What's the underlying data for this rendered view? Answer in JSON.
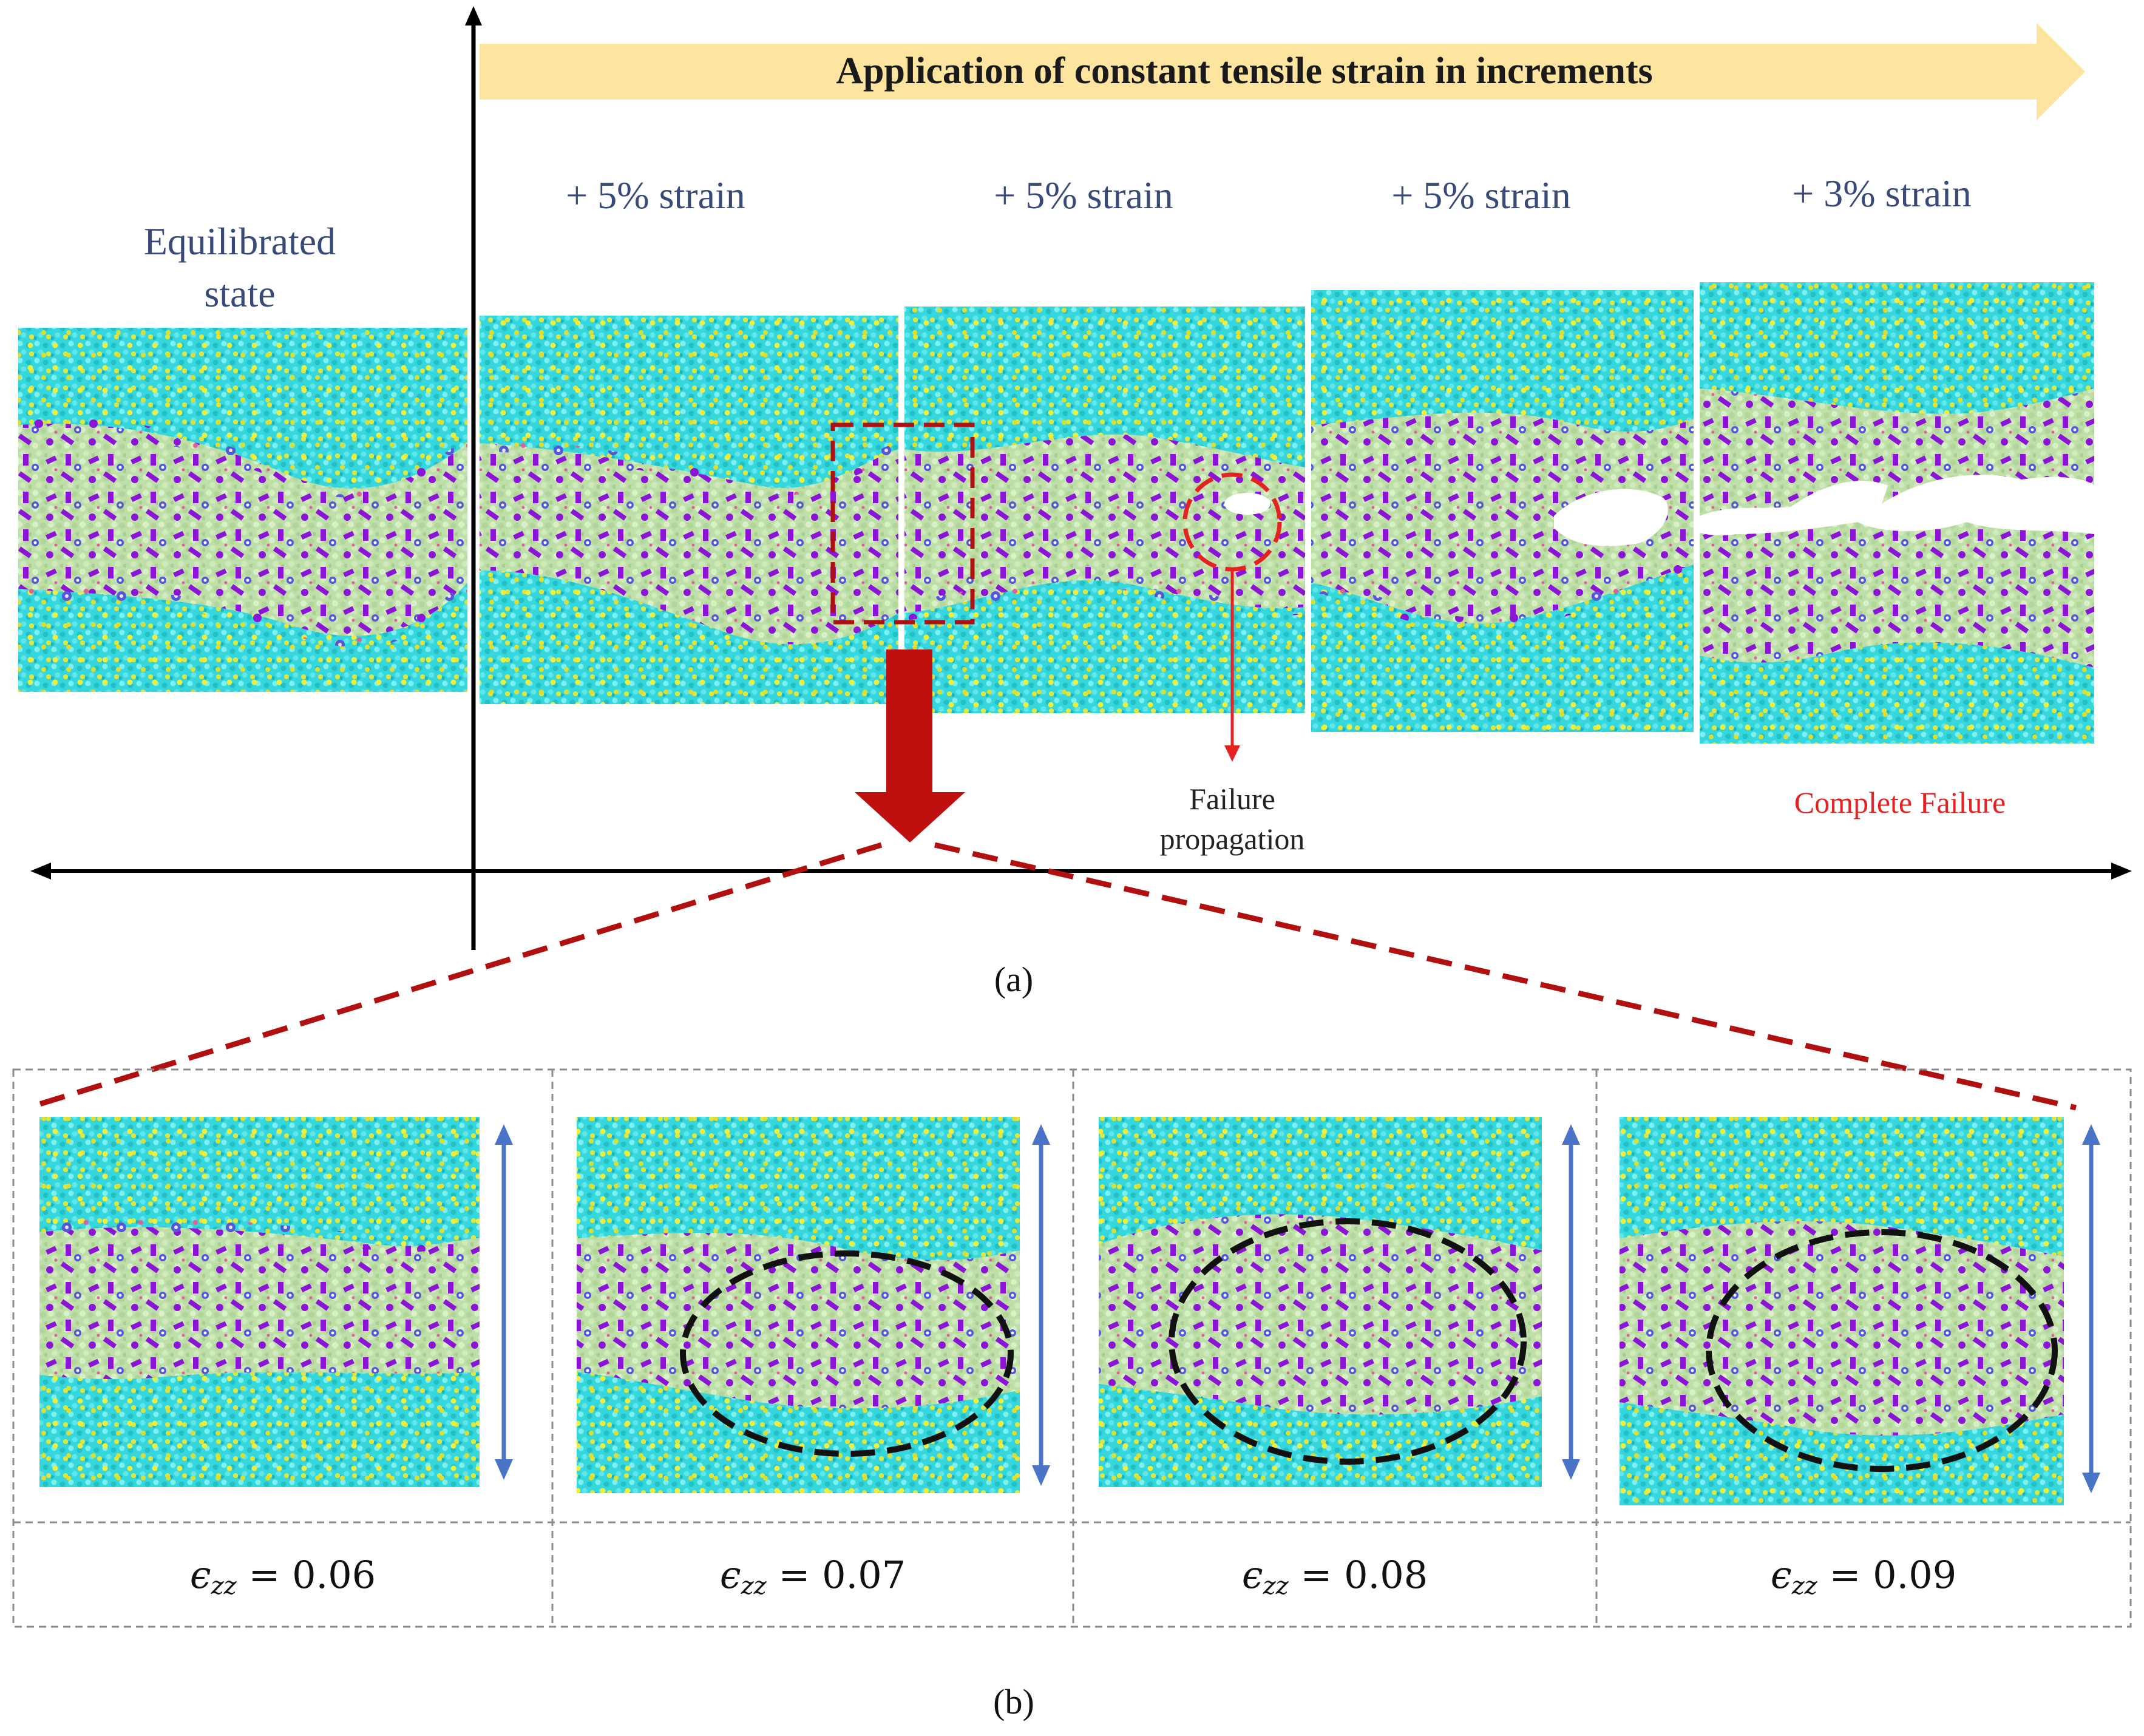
{
  "banner": {
    "title": "Application of constant tensile strain in increments"
  },
  "equilibrated": {
    "line1": "Equilibrated",
    "line2": "state"
  },
  "increments": [
    "+ 5% strain",
    "+ 5% strain",
    "+ 5% strain",
    "+ 3% strain"
  ],
  "annotations": {
    "failure_line1": "Failure",
    "failure_line2": "propagation",
    "complete_failure": "Complete Failure"
  },
  "panel_labels": {
    "a": "(a)",
    "b": "(b)"
  },
  "strain_symbol": "ϵ",
  "strain_subscript": "zz",
  "strain_values": [
    "= 0.06",
    "= 0.07",
    "= 0.08",
    "= 0.09"
  ],
  "colors": {
    "cyan": "#35d7dc",
    "yellow": "#e3e63a",
    "purple": "#8b14d6",
    "light_green": "#c7e6b0",
    "blue_violet": "#5656d8",
    "pink": "#e0609a",
    "banner": "#fde5a0",
    "dark_red": "#b01010",
    "red": "#e52222",
    "blue_arrow": "#4a74c8"
  }
}
